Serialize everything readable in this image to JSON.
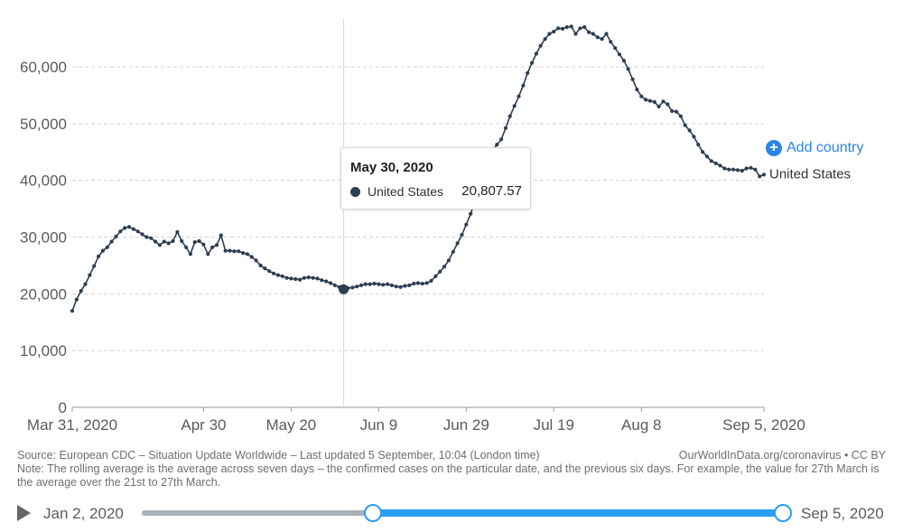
{
  "chart_data": {
    "type": "line",
    "y_ticks": [
      0,
      10000,
      20000,
      30000,
      40000,
      50000,
      60000
    ],
    "y_tick_labels": [
      "0",
      "10,000",
      "20,000",
      "30,000",
      "40,000",
      "50,000",
      "60,000"
    ],
    "x_tick_labels": [
      "Mar 31, 2020",
      "Apr 30",
      "May 20",
      "Jun 9",
      "Jun 29",
      "Jul 19",
      "Aug 8",
      "Sep 5, 2020"
    ],
    "x_tick_days": [
      0,
      30,
      50,
      70,
      90,
      110,
      130,
      158
    ],
    "ylim": [
      0,
      67000
    ],
    "xlim_days": [
      0,
      158
    ],
    "grid": "horizontal dashed",
    "series": [
      {
        "name": "United States",
        "color": "#2d3e50",
        "values": [
          17000,
          19000,
          20500,
          21700,
          23300,
          24900,
          26600,
          27600,
          28200,
          29200,
          30100,
          31000,
          31600,
          31800,
          31400,
          31000,
          30500,
          30000,
          29800,
          29200,
          28600,
          29200,
          28900,
          29300,
          30900,
          29300,
          28200,
          27000,
          29100,
          29300,
          28700,
          27000,
          28200,
          28600,
          30300,
          27600,
          27600,
          27500,
          27500,
          27200,
          27000,
          26500,
          25900,
          25000,
          24500,
          24000,
          23600,
          23300,
          23100,
          22800,
          22700,
          22600,
          22500,
          22800,
          22900,
          22800,
          22700,
          22400,
          22200,
          21900,
          21500,
          21200,
          20807.57,
          21000,
          21100,
          21300,
          21500,
          21700,
          21700,
          21800,
          21700,
          21600,
          21700,
          21500,
          21300,
          21200,
          21400,
          21500,
          21800,
          21900,
          21800,
          21900,
          22300,
          23100,
          23900,
          24800,
          25900,
          27400,
          28900,
          30400,
          32200,
          34100,
          36300,
          38400,
          40600,
          42900,
          45200,
          46300,
          47200,
          49200,
          51300,
          53100,
          54800,
          56700,
          58900,
          60700,
          62300,
          63700,
          64900,
          65800,
          66200,
          66800,
          66700,
          67000,
          67100,
          65800,
          66800,
          67000,
          66100,
          65800,
          65200,
          64900,
          65800,
          64400,
          63300,
          62200,
          61100,
          59600,
          57800,
          56000,
          54800,
          54200,
          54000,
          53800,
          53000,
          53900,
          53400,
          52200,
          52100,
          51300,
          49700,
          48800,
          47700,
          46300,
          45000,
          44200,
          43400,
          43000,
          42600,
          42100,
          41900,
          41900,
          41800,
          41700,
          42100,
          42200,
          41900,
          40700,
          41000
        ]
      }
    ],
    "highlight": {
      "date": "May 30, 2020",
      "day": 62,
      "series": "United States",
      "value": "20,807.57"
    }
  },
  "controls": {
    "add_country_label": "Add country",
    "add_country_icon": "plus-circle-icon"
  },
  "footer": {
    "source": "Source: European CDC – Situation Update Worldwide – Last updated 5 September, 10:04 (London time)",
    "credit": "OurWorldInData.org/coronavirus • CC BY",
    "note": "Note: The rolling average is the average across seven days – the confirmed cases on the particular date, and the previous six days. For example, the value for 27th March is the average over the 21st to 27th March."
  },
  "timeline": {
    "start_label": "Jan 2, 2020",
    "end_label": "Sep 5, 2020",
    "play_icon": "play-icon",
    "accent": "#2a9df4"
  }
}
